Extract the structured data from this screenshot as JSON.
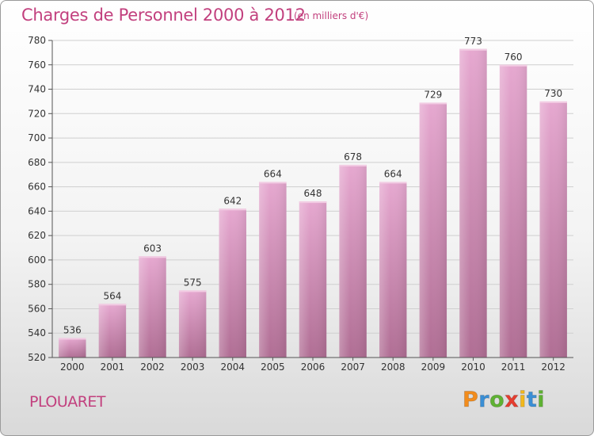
{
  "header": {
    "title": "Charges de Personnel 2000 à 2012",
    "subtitle": "(en milliers d'€)"
  },
  "footer": {
    "city": "PLOUARET",
    "logo": "Proxiti",
    "logo_letters": [
      "P",
      "r",
      "o",
      "x",
      "i",
      "t",
      "i"
    ],
    "logo_colors": [
      "#f28c1c",
      "#3a8fd6",
      "#5fb233",
      "#e63d2f",
      "#f2b81c",
      "#3a8fd6",
      "#5fb233"
    ]
  },
  "colors": {
    "accent": "#c2407e",
    "bar_top": "#e6a8d0",
    "bar_bottom": "#b06e94",
    "grid": "#cfcfcf"
  },
  "chart_data": {
    "type": "bar",
    "categories": [
      "2000",
      "2001",
      "2002",
      "2003",
      "2004",
      "2005",
      "2006",
      "2007",
      "2008",
      "2009",
      "2010",
      "2011",
      "2012"
    ],
    "values": [
      536,
      564,
      603,
      575,
      642,
      664,
      648,
      678,
      664,
      729,
      773,
      760,
      730
    ],
    "title": "Charges de Personnel 2000 à 2012",
    "ylim": [
      520,
      780
    ],
    "yticks": [
      520,
      540,
      560,
      580,
      600,
      620,
      640,
      660,
      680,
      700,
      720,
      740,
      760,
      780
    ],
    "grid": true,
    "legend": "none"
  }
}
